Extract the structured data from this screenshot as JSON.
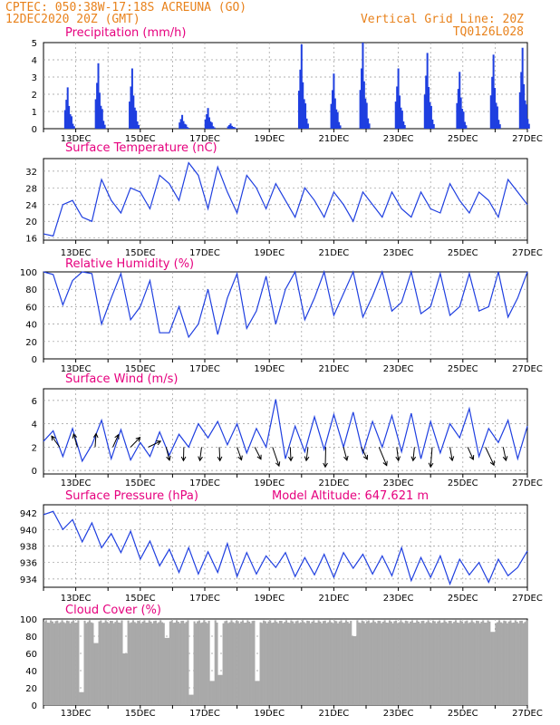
{
  "header": {
    "line1": "CPTEC:    050:38W-17:18S    ACREUNA (GO)",
    "line2": "12DEC2020  20Z (GMT)",
    "right1": "Vertical Grid Line: 20Z",
    "right2": "TQ0126L028"
  },
  "colors": {
    "header": "#e8821c",
    "title": "#e6007e",
    "series": "#1f3fe0",
    "cloud": "#a9a9a9"
  },
  "x_labels": [
    "13DEC",
    "15DEC",
    "17DEC",
    "19DEC",
    "21DEC",
    "23DEC",
    "25DEC",
    "27DEC"
  ],
  "chart_data": [
    {
      "type": "bar",
      "title": "Precipitation (mm/h)",
      "ylim": [
        0,
        5
      ],
      "yticks": [
        0,
        1,
        2,
        3,
        4,
        5
      ],
      "x_range": [
        "12DEC2020 20Z",
        "27DEC2020 20Z"
      ],
      "bursts": [
        {
          "day": 0.75,
          "peak": 2.4
        },
        {
          "day": 1.7,
          "peak": 3.8
        },
        {
          "day": 2.75,
          "peak": 3.5
        },
        {
          "day": 4.3,
          "peak": 0.8
        },
        {
          "day": 5.1,
          "peak": 1.2
        },
        {
          "day": 5.8,
          "peak": 0.3
        },
        {
          "day": 8.0,
          "peak": 4.9
        },
        {
          "day": 9.0,
          "peak": 3.2
        },
        {
          "day": 9.9,
          "peak": 5.0
        },
        {
          "day": 11.0,
          "peak": 3.5
        },
        {
          "day": 11.9,
          "peak": 4.4
        },
        {
          "day": 12.9,
          "peak": 3.3
        },
        {
          "day": 13.95,
          "peak": 4.3
        },
        {
          "day": 14.85,
          "peak": 4.7
        }
      ]
    },
    {
      "type": "line",
      "title": "Surface Temperature (nC)",
      "ylim": [
        15.5,
        35
      ],
      "yticks": [
        16,
        20,
        24,
        28,
        32
      ],
      "x": [
        0,
        0.3,
        0.6,
        0.9,
        1.2,
        1.5,
        1.8,
        2.1,
        2.4,
        2.7,
        3.0,
        3.3,
        3.6,
        3.9,
        4.2,
        4.5,
        4.8,
        5.1,
        5.4,
        5.7,
        6.0,
        6.3,
        6.6,
        6.9,
        7.2,
        7.5,
        7.8,
        8.1,
        8.4,
        8.7,
        9.0,
        9.3,
        9.6,
        9.9,
        10.2,
        10.5,
        10.8,
        11.1,
        11.4,
        11.7,
        12.0,
        12.3,
        12.6,
        12.9,
        13.2,
        13.5,
        13.8,
        14.1,
        14.4,
        14.7,
        15.0
      ],
      "values": [
        17,
        16.5,
        24,
        25,
        21,
        20,
        30,
        25,
        22,
        28,
        27,
        23,
        31,
        29,
        25,
        34,
        31,
        23,
        33,
        27,
        22,
        31,
        28,
        23,
        29,
        25,
        21,
        28,
        25,
        21,
        27,
        24,
        20,
        27,
        24,
        21,
        27,
        23,
        21,
        27,
        23,
        22,
        29,
        25,
        22,
        27,
        25,
        21,
        30,
        27,
        24
      ]
    },
    {
      "type": "line",
      "title": "Relative Humidity (%)",
      "ylim": [
        0,
        100
      ],
      "yticks": [
        0,
        20,
        40,
        60,
        80,
        100
      ],
      "x": [
        0,
        0.3,
        0.6,
        0.9,
        1.2,
        1.5,
        1.8,
        2.1,
        2.4,
        2.7,
        3.0,
        3.3,
        3.6,
        3.9,
        4.2,
        4.5,
        4.8,
        5.1,
        5.4,
        5.7,
        6.0,
        6.3,
        6.6,
        6.9,
        7.2,
        7.5,
        7.8,
        8.1,
        8.4,
        8.7,
        9.0,
        9.3,
        9.6,
        9.9,
        10.2,
        10.5,
        10.8,
        11.1,
        11.4,
        11.7,
        12.0,
        12.3,
        12.6,
        12.9,
        13.2,
        13.5,
        13.8,
        14.1,
        14.4,
        14.7,
        15.0
      ],
      "values": [
        100,
        97,
        62,
        90,
        100,
        98,
        40,
        70,
        98,
        45,
        60,
        90,
        30,
        30,
        60,
        25,
        40,
        80,
        28,
        70,
        98,
        35,
        55,
        95,
        40,
        80,
        100,
        45,
        70,
        100,
        50,
        75,
        100,
        48,
        72,
        100,
        55,
        65,
        100,
        52,
        60,
        98,
        50,
        60,
        98,
        55,
        60,
        100,
        48,
        70,
        100
      ]
    },
    {
      "type": "line",
      "title": "Surface Wind (m/s)",
      "ylim": [
        -0.3,
        7
      ],
      "yticks": [
        0,
        2,
        4,
        6
      ],
      "x": [
        0,
        0.3,
        0.6,
        0.9,
        1.2,
        1.5,
        1.8,
        2.1,
        2.4,
        2.7,
        3.0,
        3.3,
        3.6,
        3.9,
        4.2,
        4.5,
        4.8,
        5.1,
        5.4,
        5.7,
        6.0,
        6.3,
        6.6,
        6.9,
        7.2,
        7.5,
        7.8,
        8.1,
        8.4,
        8.7,
        9.0,
        9.3,
        9.6,
        9.9,
        10.2,
        10.5,
        10.8,
        11.1,
        11.4,
        11.7,
        12.0,
        12.3,
        12.6,
        12.9,
        13.2,
        13.5,
        13.8,
        14.1,
        14.4,
        14.7,
        15.0
      ],
      "values": [
        2.5,
        3.4,
        1.2,
        3.6,
        0.8,
        2.2,
        4.3,
        1.0,
        3.5,
        0.9,
        2.4,
        1.2,
        3.3,
        1.3,
        3.1,
        2.0,
        4.0,
        2.8,
        4.2,
        2.2,
        4.0,
        1.5,
        3.6,
        2.0,
        6.1,
        1.0,
        3.8,
        1.6,
        4.6,
        1.8,
        4.8,
        2.0,
        5.0,
        1.5,
        4.2,
        2.0,
        4.7,
        1.6,
        4.9,
        1.0,
        4.2,
        1.5,
        4.0,
        2.8,
        5.3,
        1.2,
        3.6,
        2.4,
        4.3,
        1.0,
        3.8
      ],
      "arrows_count": 26
    },
    {
      "type": "line",
      "title": "Surface Pressure (hPa)",
      "annotation": "Model Altitude: 647.621 m",
      "ylim": [
        933,
        943
      ],
      "yticks": [
        934,
        936,
        938,
        940,
        942
      ],
      "x": [
        0,
        0.3,
        0.6,
        0.9,
        1.2,
        1.5,
        1.8,
        2.1,
        2.4,
        2.7,
        3.0,
        3.3,
        3.6,
        3.9,
        4.2,
        4.5,
        4.8,
        5.1,
        5.4,
        5.7,
        6.0,
        6.3,
        6.6,
        6.9,
        7.2,
        7.5,
        7.8,
        8.1,
        8.4,
        8.7,
        9.0,
        9.3,
        9.6,
        9.9,
        10.2,
        10.5,
        10.8,
        11.1,
        11.4,
        11.7,
        12.0,
        12.3,
        12.6,
        12.9,
        13.2,
        13.5,
        13.8,
        14.1,
        14.4,
        14.7,
        15.0
      ],
      "values": [
        941.8,
        942.2,
        940.0,
        941.2,
        938.5,
        940.8,
        937.8,
        939.5,
        937.2,
        939.8,
        936.4,
        938.6,
        935.6,
        937.6,
        934.8,
        937.8,
        934.6,
        937.3,
        934.8,
        938.3,
        934.3,
        937.2,
        934.6,
        936.8,
        935.4,
        937.2,
        934.3,
        936.6,
        934.5,
        937.0,
        934.2,
        937.2,
        935.3,
        937.0,
        934.6,
        936.8,
        934.4,
        937.8,
        933.8,
        936.6,
        934.2,
        936.8,
        933.4,
        936.4,
        934.5,
        936.0,
        933.6,
        936.4,
        934.4,
        935.4,
        937.4
      ]
    },
    {
      "type": "area",
      "title": "Cloud Cover (%)",
      "ylim": [
        0,
        100
      ],
      "yticks": [
        0,
        20,
        40,
        60,
        80,
        100
      ],
      "baseline": 95,
      "dips": [
        {
          "day": 1.15,
          "value": 15
        },
        {
          "day": 1.6,
          "value": 72
        },
        {
          "day": 2.5,
          "value": 60
        },
        {
          "day": 3.8,
          "value": 78
        },
        {
          "day": 4.55,
          "value": 12
        },
        {
          "day": 5.2,
          "value": 28
        },
        {
          "day": 5.45,
          "value": 35
        },
        {
          "day": 6.6,
          "value": 28
        },
        {
          "day": 9.6,
          "value": 80
        },
        {
          "day": 13.9,
          "value": 85
        }
      ]
    }
  ]
}
